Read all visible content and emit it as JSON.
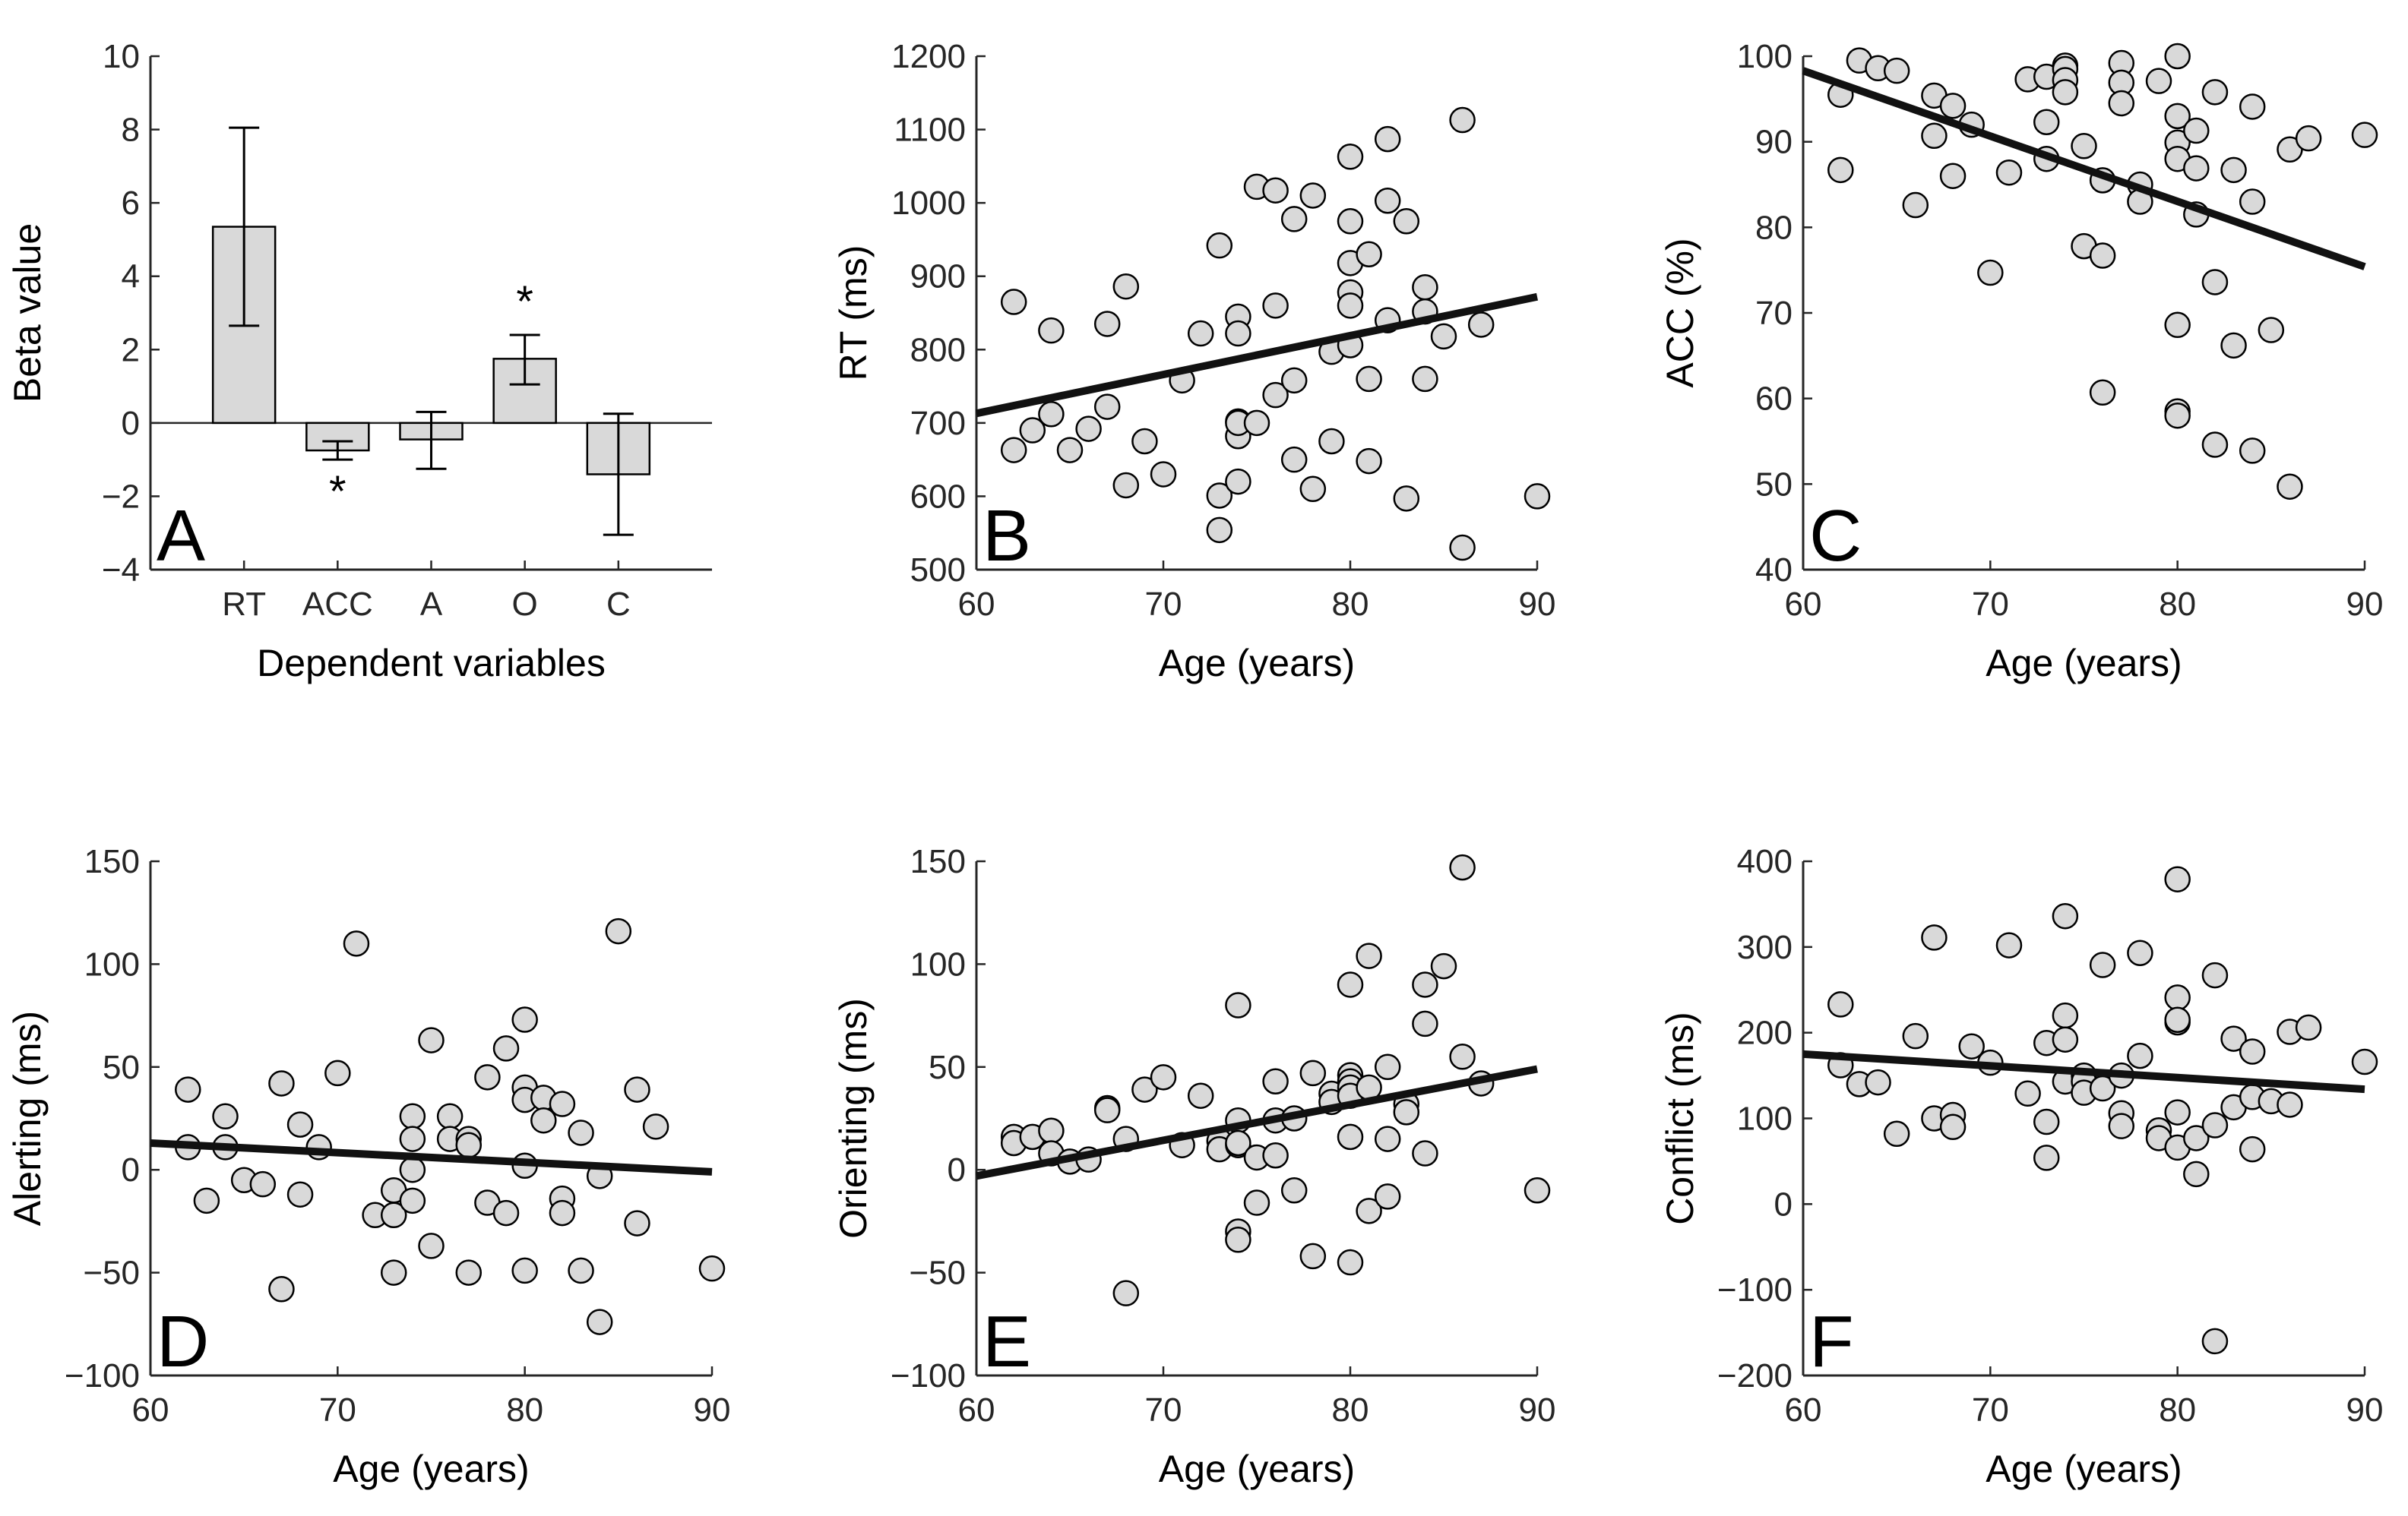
{
  "colors": {
    "background": "#ffffff",
    "axis": "#262626",
    "bar_fill": "#d9d9d9",
    "marker_fill": "#d9d9d9",
    "marker_edge": "#000000",
    "fit_line": "#111111"
  },
  "chart_data": [
    {
      "id": "A",
      "type": "bar",
      "panel_label": "A",
      "xlabel": "Dependent variables",
      "ylabel": "Beta value",
      "categories": [
        "RT",
        "ACC",
        "A",
        "O",
        "C"
      ],
      "values": [
        5.35,
        -0.75,
        -0.45,
        1.75,
        -1.4
      ],
      "error_low": [
        2.65,
        -1.0,
        -1.25,
        1.05,
        -3.05
      ],
      "error_high": [
        8.05,
        -0.5,
        0.3,
        2.4,
        0.25
      ],
      "significance": [
        "",
        "*",
        "",
        "*",
        ""
      ],
      "ylim": [
        -4,
        10
      ],
      "yticks": [
        -4,
        -2,
        0,
        2,
        4,
        6,
        8,
        10
      ],
      "ytick_labels": [
        "−4",
        "−2",
        "0",
        "2",
        "4",
        "6",
        "8",
        "10"
      ]
    },
    {
      "id": "B",
      "type": "scatter",
      "panel_label": "B",
      "xlabel": "Age (years)",
      "ylabel": "RT (ms)",
      "xlim": [
        60,
        90
      ],
      "ylim": [
        500,
        1200
      ],
      "xticks": [
        60,
        70,
        80,
        90
      ],
      "xtick_labels": [
        "60",
        "70",
        "80",
        "90"
      ],
      "yticks": [
        500,
        600,
        700,
        800,
        900,
        1000,
        1100,
        1200
      ],
      "ytick_labels": [
        "500",
        "600",
        "700",
        "800",
        "900",
        "1000",
        "1100",
        "1200"
      ],
      "x": [
        62,
        62,
        63,
        64,
        64,
        65,
        66,
        67,
        67,
        68,
        68,
        69,
        70,
        71,
        72,
        73,
        73,
        73,
        74,
        74,
        74,
        74,
        74,
        74,
        75,
        75,
        76,
        76,
        76,
        77,
        77,
        77,
        78,
        78,
        79,
        79,
        80,
        80,
        80,
        80,
        80,
        80,
        81,
        81,
        81,
        82,
        82,
        82,
        83,
        83,
        84,
        84,
        84,
        85,
        86,
        86,
        87,
        90
      ],
      "y": [
        865,
        663,
        690,
        712,
        826,
        663,
        692,
        722,
        835,
        615,
        886,
        675,
        630,
        758,
        822,
        942,
        601,
        554,
        845,
        822,
        702,
        682,
        620,
        700,
        1022,
        700,
        1017,
        860,
        738,
        978,
        758,
        650,
        1010,
        610,
        797,
        675,
        1063,
        975,
        918,
        878,
        860,
        806,
        930,
        760,
        648,
        1087,
        1003,
        840,
        975,
        597,
        885,
        852,
        760,
        818,
        1113,
        530,
        834,
        600
      ],
      "fit": {
        "x": [
          60,
          90
        ],
        "y": [
          713,
          872
        ]
      }
    },
    {
      "id": "C",
      "type": "scatter",
      "panel_label": "C",
      "xlabel": "Age (years)",
      "ylabel": "ACC (%)",
      "xlim": [
        60,
        90
      ],
      "ylim": [
        40,
        100
      ],
      "xticks": [
        60,
        70,
        80,
        90
      ],
      "xtick_labels": [
        "60",
        "70",
        "80",
        "90"
      ],
      "yticks": [
        40,
        50,
        60,
        70,
        80,
        90,
        100
      ],
      "ytick_labels": [
        "40",
        "50",
        "60",
        "70",
        "80",
        "90",
        "100"
      ],
      "x": [
        62,
        62,
        63,
        64,
        65,
        66,
        67,
        67,
        68,
        68,
        69,
        70,
        71,
        72,
        73,
        73,
        73,
        74,
        74,
        74,
        74,
        75,
        75,
        76,
        76,
        76,
        77,
        77,
        77,
        78,
        78,
        79,
        80,
        80,
        80,
        80,
        80,
        80,
        80,
        81,
        81,
        81,
        82,
        82,
        82,
        83,
        83,
        84,
        84,
        84,
        85,
        86,
        86,
        87,
        90
      ],
      "y": [
        95.5,
        86.7,
        99.5,
        98.6,
        98.3,
        82.6,
        95.4,
        90.7,
        94.2,
        86,
        92,
        74.7,
        86.4,
        97.3,
        97.6,
        92.3,
        88,
        98.9,
        98.5,
        97.2,
        95.8,
        89.5,
        77.8,
        85.5,
        76.7,
        60.7,
        99.2,
        96.9,
        94.5,
        85,
        83,
        97.1,
        100,
        93,
        89.9,
        68.6,
        58.5,
        58,
        88,
        91.3,
        86.9,
        81.5,
        95.8,
        73.6,
        54.6,
        86.7,
        66.2,
        94.1,
        83,
        53.9,
        68,
        89.1,
        49.7,
        90.4,
        90.8
      ],
      "fit": {
        "x": [
          60,
          90
        ],
        "y": [
          98.3,
          75.4
        ]
      }
    },
    {
      "id": "D",
      "type": "scatter",
      "panel_label": "D",
      "xlabel": "Age (years)",
      "ylabel": "Alerting (ms)",
      "xlim": [
        60,
        90
      ],
      "ylim": [
        -100,
        150
      ],
      "xticks": [
        60,
        70,
        80,
        90
      ],
      "xtick_labels": [
        "60",
        "70",
        "80",
        "90"
      ],
      "yticks": [
        -100,
        -50,
        0,
        50,
        100,
        150
      ],
      "ytick_labels": [
        "−100",
        "−50",
        "0",
        "50",
        "100",
        "150"
      ],
      "x": [
        62,
        62,
        63,
        64,
        64,
        65,
        66,
        67,
        67,
        68,
        68,
        69,
        70,
        71,
        72,
        73,
        73,
        73,
        74,
        74,
        74,
        74,
        75,
        75,
        76,
        76,
        77,
        77,
        77,
        78,
        78,
        79,
        79,
        80,
        80,
        80,
        80,
        80,
        81,
        81,
        82,
        82,
        82,
        83,
        83,
        84,
        84,
        85,
        86,
        86,
        87,
        90
      ],
      "y": [
        39,
        11,
        -15,
        26,
        11,
        -5,
        -7,
        42,
        -58,
        22,
        -12,
        11,
        47,
        110,
        -22,
        -10,
        -22,
        -50,
        26,
        15,
        0,
        -15,
        63,
        -37,
        26,
        15,
        15,
        12,
        -50,
        45,
        -16,
        59,
        -21,
        73,
        40,
        34,
        2,
        -49,
        35,
        24,
        32,
        -14,
        -21,
        -49,
        18,
        -74,
        -3,
        116,
        39,
        -26,
        21,
        -48
      ],
      "fit": {
        "x": [
          60,
          90
        ],
        "y": [
          13,
          -1
        ]
      }
    },
    {
      "id": "E",
      "type": "scatter",
      "panel_label": "E",
      "xlabel": "Age (years)",
      "ylabel": "Orienting (ms)",
      "xlim": [
        60,
        90
      ],
      "ylim": [
        -100,
        150
      ],
      "xticks": [
        60,
        70,
        80,
        90
      ],
      "xtick_labels": [
        "60",
        "70",
        "80",
        "90"
      ],
      "yticks": [
        -100,
        -50,
        0,
        50,
        100,
        150
      ],
      "ytick_labels": [
        "−100",
        "−50",
        "0",
        "50",
        "100",
        "150"
      ],
      "x": [
        62,
        62,
        63,
        64,
        64,
        65,
        66,
        67,
        67,
        68,
        68,
        69,
        70,
        71,
        72,
        73,
        73,
        74,
        74,
        74,
        74,
        74,
        74,
        75,
        75,
        76,
        76,
        76,
        77,
        77,
        78,
        78,
        79,
        79,
        80,
        80,
        80,
        80,
        80,
        80,
        80,
        81,
        81,
        81,
        82,
        82,
        82,
        83,
        83,
        84,
        84,
        84,
        85,
        86,
        86,
        87,
        90
      ],
      "y": [
        16,
        13,
        16,
        19,
        8,
        4,
        5,
        30,
        29,
        15,
        -60,
        39,
        45,
        12,
        36,
        14,
        10,
        80,
        24,
        12,
        -30,
        -34,
        13,
        -16,
        6,
        43,
        24,
        7,
        25,
        -10,
        47,
        -42,
        37,
        33,
        90,
        46,
        43,
        40,
        36,
        16,
        -45,
        104,
        40,
        -20,
        50,
        15,
        -13,
        32,
        28,
        90,
        71,
        8,
        99,
        147,
        55,
        42,
        -10
      ],
      "fit": {
        "x": [
          60,
          90
        ],
        "y": [
          -3,
          49
        ]
      }
    },
    {
      "id": "F",
      "type": "scatter",
      "panel_label": "F",
      "xlabel": "Age (years)",
      "ylabel": "Conflict (ms)",
      "xlim": [
        60,
        90
      ],
      "ylim": [
        -200,
        400
      ],
      "xticks": [
        60,
        70,
        80,
        90
      ],
      "xtick_labels": [
        "60",
        "70",
        "80",
        "90"
      ],
      "yticks": [
        -200,
        -100,
        0,
        100,
        200,
        300,
        400
      ],
      "ytick_labels": [
        "−200",
        "−100",
        "0",
        "100",
        "200",
        "300",
        "400"
      ],
      "x": [
        62,
        62,
        63,
        64,
        65,
        66,
        67,
        67,
        68,
        68,
        69,
        70,
        71,
        72,
        73,
        73,
        73,
        74,
        74,
        74,
        74,
        75,
        75,
        75,
        76,
        76,
        77,
        77,
        77,
        78,
        78,
        79,
        79,
        80,
        80,
        80,
        80,
        80,
        80,
        81,
        81,
        82,
        82,
        82,
        83,
        83,
        84,
        84,
        84,
        85,
        86,
        86,
        87,
        90
      ],
      "y": [
        233,
        162,
        140,
        142,
        82,
        196,
        311,
        100,
        104,
        90,
        184,
        165,
        302,
        129,
        188,
        96,
        54,
        336,
        220,
        192,
        143,
        150,
        143,
        130,
        279,
        135,
        150,
        106,
        91,
        293,
        173,
        86,
        77,
        379,
        241,
        212,
        107,
        66,
        215,
        77,
        35,
        267,
        92,
        -160,
        193,
        113,
        178,
        125,
        64,
        120,
        201,
        116,
        206,
        166
      ],
      "fit": {
        "x": [
          60,
          90
        ],
        "y": [
          175,
          134
        ]
      }
    }
  ]
}
